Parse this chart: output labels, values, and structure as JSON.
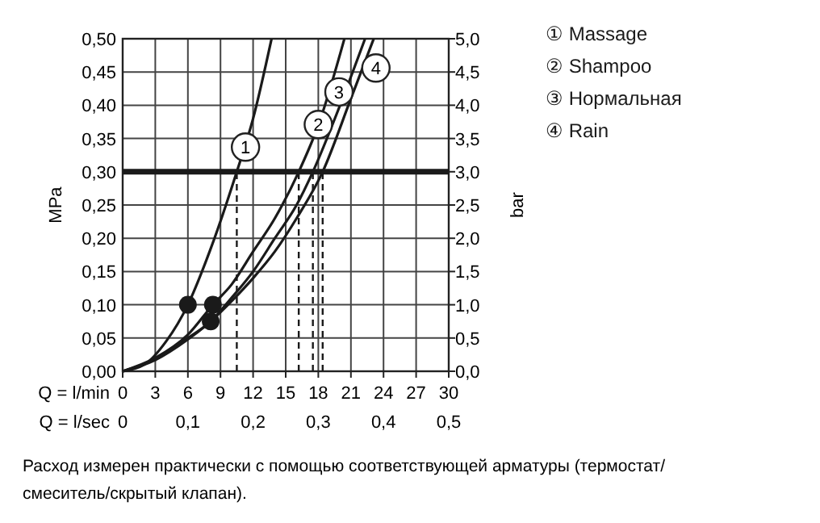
{
  "chart_data": {
    "type": "line",
    "xlabel": "Q = l/min",
    "x2label": "Q = l/sec",
    "ylabel": "MPa",
    "y2label": "bar",
    "xlim": [
      0,
      30
    ],
    "xticks": [
      0,
      3,
      6,
      9,
      12,
      15,
      18,
      21,
      24,
      27,
      30
    ],
    "x2lim": [
      0,
      0.5
    ],
    "x2ticks": [
      0,
      {
        "value": 0.1,
        "label": "0,1"
      },
      {
        "value": 0.2,
        "label": "0,2"
      },
      {
        "value": 0.3,
        "label": "0,3"
      },
      {
        "value": 0.4,
        "label": "0,4"
      },
      {
        "value": 0.5,
        "label": "0,5"
      }
    ],
    "ylim": [
      0,
      0.5
    ],
    "yticks": [
      {
        "value": 0,
        "label": "0,00"
      },
      {
        "value": 0.05,
        "label": "0,05"
      },
      {
        "value": 0.1,
        "label": "0,10"
      },
      {
        "value": 0.15,
        "label": "0,15"
      },
      {
        "value": 0.2,
        "label": "0,20"
      },
      {
        "value": 0.25,
        "label": "0,25"
      },
      {
        "value": 0.3,
        "label": "0,30"
      },
      {
        "value": 0.35,
        "label": "0,35"
      },
      {
        "value": 0.4,
        "label": "0,40"
      },
      {
        "value": 0.45,
        "label": "0,45"
      },
      {
        "value": 0.5,
        "label": "0,50"
      }
    ],
    "y2lim": [
      0,
      5
    ],
    "y2ticks": [
      {
        "value": 0,
        "label": "0,0"
      },
      {
        "value": 0.5,
        "label": "0,5"
      },
      {
        "value": 1,
        "label": "1,0"
      },
      {
        "value": 1.5,
        "label": "1,5"
      },
      {
        "value": 2,
        "label": "2,0"
      },
      {
        "value": 2.5,
        "label": "2,5"
      },
      {
        "value": 3,
        "label": "3,0"
      },
      {
        "value": 3.5,
        "label": "3,5"
      },
      {
        "value": 4,
        "label": "4,0"
      },
      {
        "value": 4.5,
        "label": "4,5"
      },
      {
        "value": 5,
        "label": "5,0"
      }
    ],
    "grid": true,
    "legend": "right",
    "marker": "none",
    "line_style": "solid",
    "series": [
      {
        "name": "① Massage",
        "color": "#1a1a1a",
        "x": [
          0,
          2,
          4,
          6,
          8,
          10.5,
          12,
          13.7
        ],
        "values": [
          0,
          0.01,
          0.045,
          0.1,
          0.18,
          0.3,
          0.38,
          0.5
        ]
      },
      {
        "name": "② Shampoo",
        "color": "#1a1a1a",
        "x": [
          0,
          3,
          6,
          8.3,
          10,
          12,
          14,
          16.2,
          18,
          20.4
        ],
        "values": [
          0,
          0.02,
          0.055,
          0.1,
          0.13,
          0.18,
          0.23,
          0.3,
          0.37,
          0.5
        ]
      },
      {
        "name": "③ Нормальная",
        "color": "#1a1a1a",
        "x": [
          0,
          3,
          6,
          8.1,
          10,
          12,
          14,
          16,
          17.5,
          20,
          22.3
        ],
        "values": [
          0,
          0.018,
          0.05,
          0.075,
          0.11,
          0.15,
          0.2,
          0.25,
          0.3,
          0.4,
          0.5
        ]
      },
      {
        "name": "④ Rain",
        "color": "#1a1a1a",
        "x": [
          0,
          3,
          6,
          8.1,
          10,
          12,
          14,
          16,
          18.4,
          21,
          23.1
        ],
        "values": [
          0,
          0.017,
          0.048,
          0.075,
          0.105,
          0.14,
          0.18,
          0.23,
          0.3,
          0.41,
          0.5
        ]
      },
      {
        "type": "scatter",
        "marker": "circle",
        "color": "#1a1a1a",
        "x": [
          6,
          8.3,
          8.1
        ],
        "values": [
          0.1,
          0.1,
          0.075
        ]
      }
    ],
    "ref_lines": [
      {
        "axis": "y",
        "value": 0.3,
        "color": "#1a1a1a"
      },
      {
        "axis": "x",
        "value": 10.5,
        "line_style": "dashed",
        "color": "#1a1a1a"
      },
      {
        "axis": "x",
        "value": 16.2,
        "line_style": "dashed",
        "color": "#1a1a1a"
      },
      {
        "axis": "x",
        "value": 17.5,
        "line_style": "dashed",
        "color": "#1a1a1a"
      },
      {
        "axis": "x",
        "value": 18.4,
        "line_style": "dashed",
        "color": "#1a1a1a"
      }
    ],
    "annotations": [
      {
        "text": "1",
        "x": 11.3,
        "y": 0.337
      },
      {
        "text": "2",
        "x": 18.0,
        "y": 0.371
      },
      {
        "text": "3",
        "x": 19.9,
        "y": 0.42
      },
      {
        "text": "4",
        "x": 23.3,
        "y": 0.456
      },
      "Расход измерен практически с помощью соответствующей арматуры (термостат/смеситель/скрытый клапан)."
    ]
  }
}
